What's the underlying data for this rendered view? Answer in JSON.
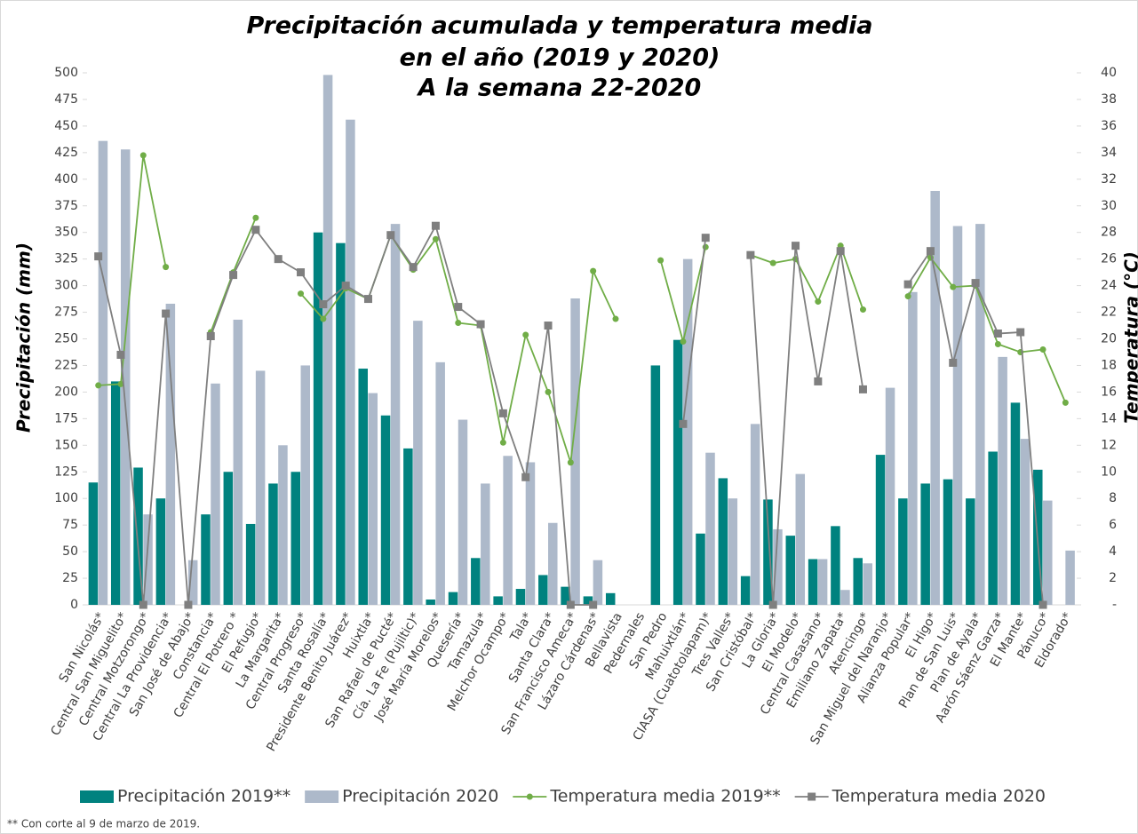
{
  "chart_data": {
    "type": "bar_line",
    "title": [
      "Precipitación acumulada y temperatura media",
      "en el año (2019 y 2020)",
      "A la semana 22-2020"
    ],
    "ylabel": "Precipitación (mm)",
    "y2label": "Temperatura (°C)",
    "footnote": "** Con corte al 9 de marzo de 2019.",
    "categories": [
      "San Nicolás*",
      "Central San Miguelito*",
      "Central Motzorongo*",
      "Central La Providencia*",
      "San José de Abajo*",
      "Constancia*",
      "Central El Potrero *",
      "El Pefugio*",
      "La Margarita*",
      "Central Progreso*",
      "Santa Rosalía*",
      "Presidente Benito Juárez*",
      "Huixtla*",
      "San Rafael de Pucté*",
      "Cía. La Fe (Pujiltic)*",
      "José María Morelos*",
      "Quesería*",
      "Tamazula*",
      "Melchor Ocampo*",
      "Tala*",
      "Santa Clara*",
      "San Francisco Ameca*",
      "Lázaro Cárdenas*",
      "Bellavista",
      "Pedernales",
      "San Pedro",
      "Mahuixtlán*",
      "CIASA (Cuatotolapam)*",
      "Tres Valles*",
      "San Cristóbal*",
      "La Gloria*",
      "El Modelo*",
      "Central Casasano*",
      "Emiliano Zapata*",
      "Atencingo*",
      "San Miguel del Naranjo*",
      "Alianza Popular*",
      "El Higo*",
      "Plan de San Luis*",
      "Plan de Ayala*",
      "Aarón Sáenz Garza*",
      "El Mante*",
      "Pánuco*",
      "Eldorado*"
    ],
    "series": [
      {
        "name": "Precipitación 2019**",
        "kind": "bar",
        "color": "#00827f",
        "values": [
          115,
          210,
          129,
          100,
          0,
          85,
          125,
          76,
          114,
          125,
          350,
          340,
          222,
          178,
          147,
          5,
          12,
          44,
          8,
          15,
          28,
          17,
          8,
          11,
          0,
          225,
          249,
          67,
          119,
          27,
          99,
          65,
          43,
          74,
          44,
          141,
          100,
          114,
          118,
          100,
          144,
          190,
          127,
          0
        ]
      },
      {
        "name": "Precipitación 2020",
        "kind": "bar",
        "color": "#adb9ca",
        "values": [
          436,
          428,
          85,
          283,
          42,
          208,
          268,
          220,
          150,
          225,
          498,
          456,
          199,
          358,
          267,
          228,
          174,
          114,
          140,
          134,
          77,
          288,
          42,
          0,
          0,
          0,
          325,
          143,
          100,
          170,
          71,
          123,
          43,
          14,
          39,
          204,
          294,
          389,
          356,
          358,
          233,
          156,
          98,
          51
        ]
      },
      {
        "name": "Temperatura media 2019**",
        "kind": "line",
        "marker": "circle",
        "axis": "y2",
        "color": "#70ad47",
        "values": [
          16.5,
          16.6,
          33.8,
          25.4,
          null,
          20.5,
          25.0,
          29.1,
          null,
          23.4,
          21.5,
          23.8,
          23.0,
          27.8,
          25.2,
          27.5,
          21.2,
          21.0,
          12.2,
          20.3,
          16.0,
          10.7,
          25.1,
          21.5,
          null,
          25.9,
          19.8,
          26.9,
          null,
          26.3,
          25.7,
          26.0,
          22.8,
          27.0,
          22.2,
          null,
          23.2,
          26.1,
          23.9,
          24.0,
          19.6,
          19.0,
          19.2,
          15.2
        ]
      },
      {
        "name": "Temperatura media 2020",
        "kind": "line",
        "marker": "square",
        "axis": "y2",
        "color": "#7f7f7f",
        "values": [
          26.2,
          18.8,
          0,
          21.9,
          0,
          20.2,
          24.8,
          28.2,
          26.0,
          25.0,
          22.6,
          24.0,
          23.0,
          27.8,
          25.4,
          28.5,
          22.4,
          21.1,
          14.4,
          9.6,
          21.0,
          0,
          0,
          null,
          null,
          null,
          13.6,
          27.6,
          null,
          26.3,
          0,
          27.0,
          16.8,
          26.6,
          16.2,
          null,
          24.1,
          26.6,
          18.2,
          24.2,
          20.4,
          20.5,
          0,
          null
        ]
      }
    ],
    "ylim": [
      0,
      500
    ],
    "yticks": [
      0,
      25,
      50,
      75,
      100,
      125,
      150,
      175,
      200,
      225,
      250,
      275,
      300,
      325,
      350,
      375,
      400,
      425,
      450,
      475,
      500
    ],
    "y2lim": [
      0,
      40
    ],
    "y2ticks": [
      {
        "value": 0,
        "label": "-"
      },
      2,
      4,
      6,
      8,
      10,
      12,
      14,
      16,
      18,
      20,
      22,
      24,
      26,
      28,
      30,
      32,
      34,
      36,
      38,
      40
    ],
    "legend": "bottom"
  }
}
